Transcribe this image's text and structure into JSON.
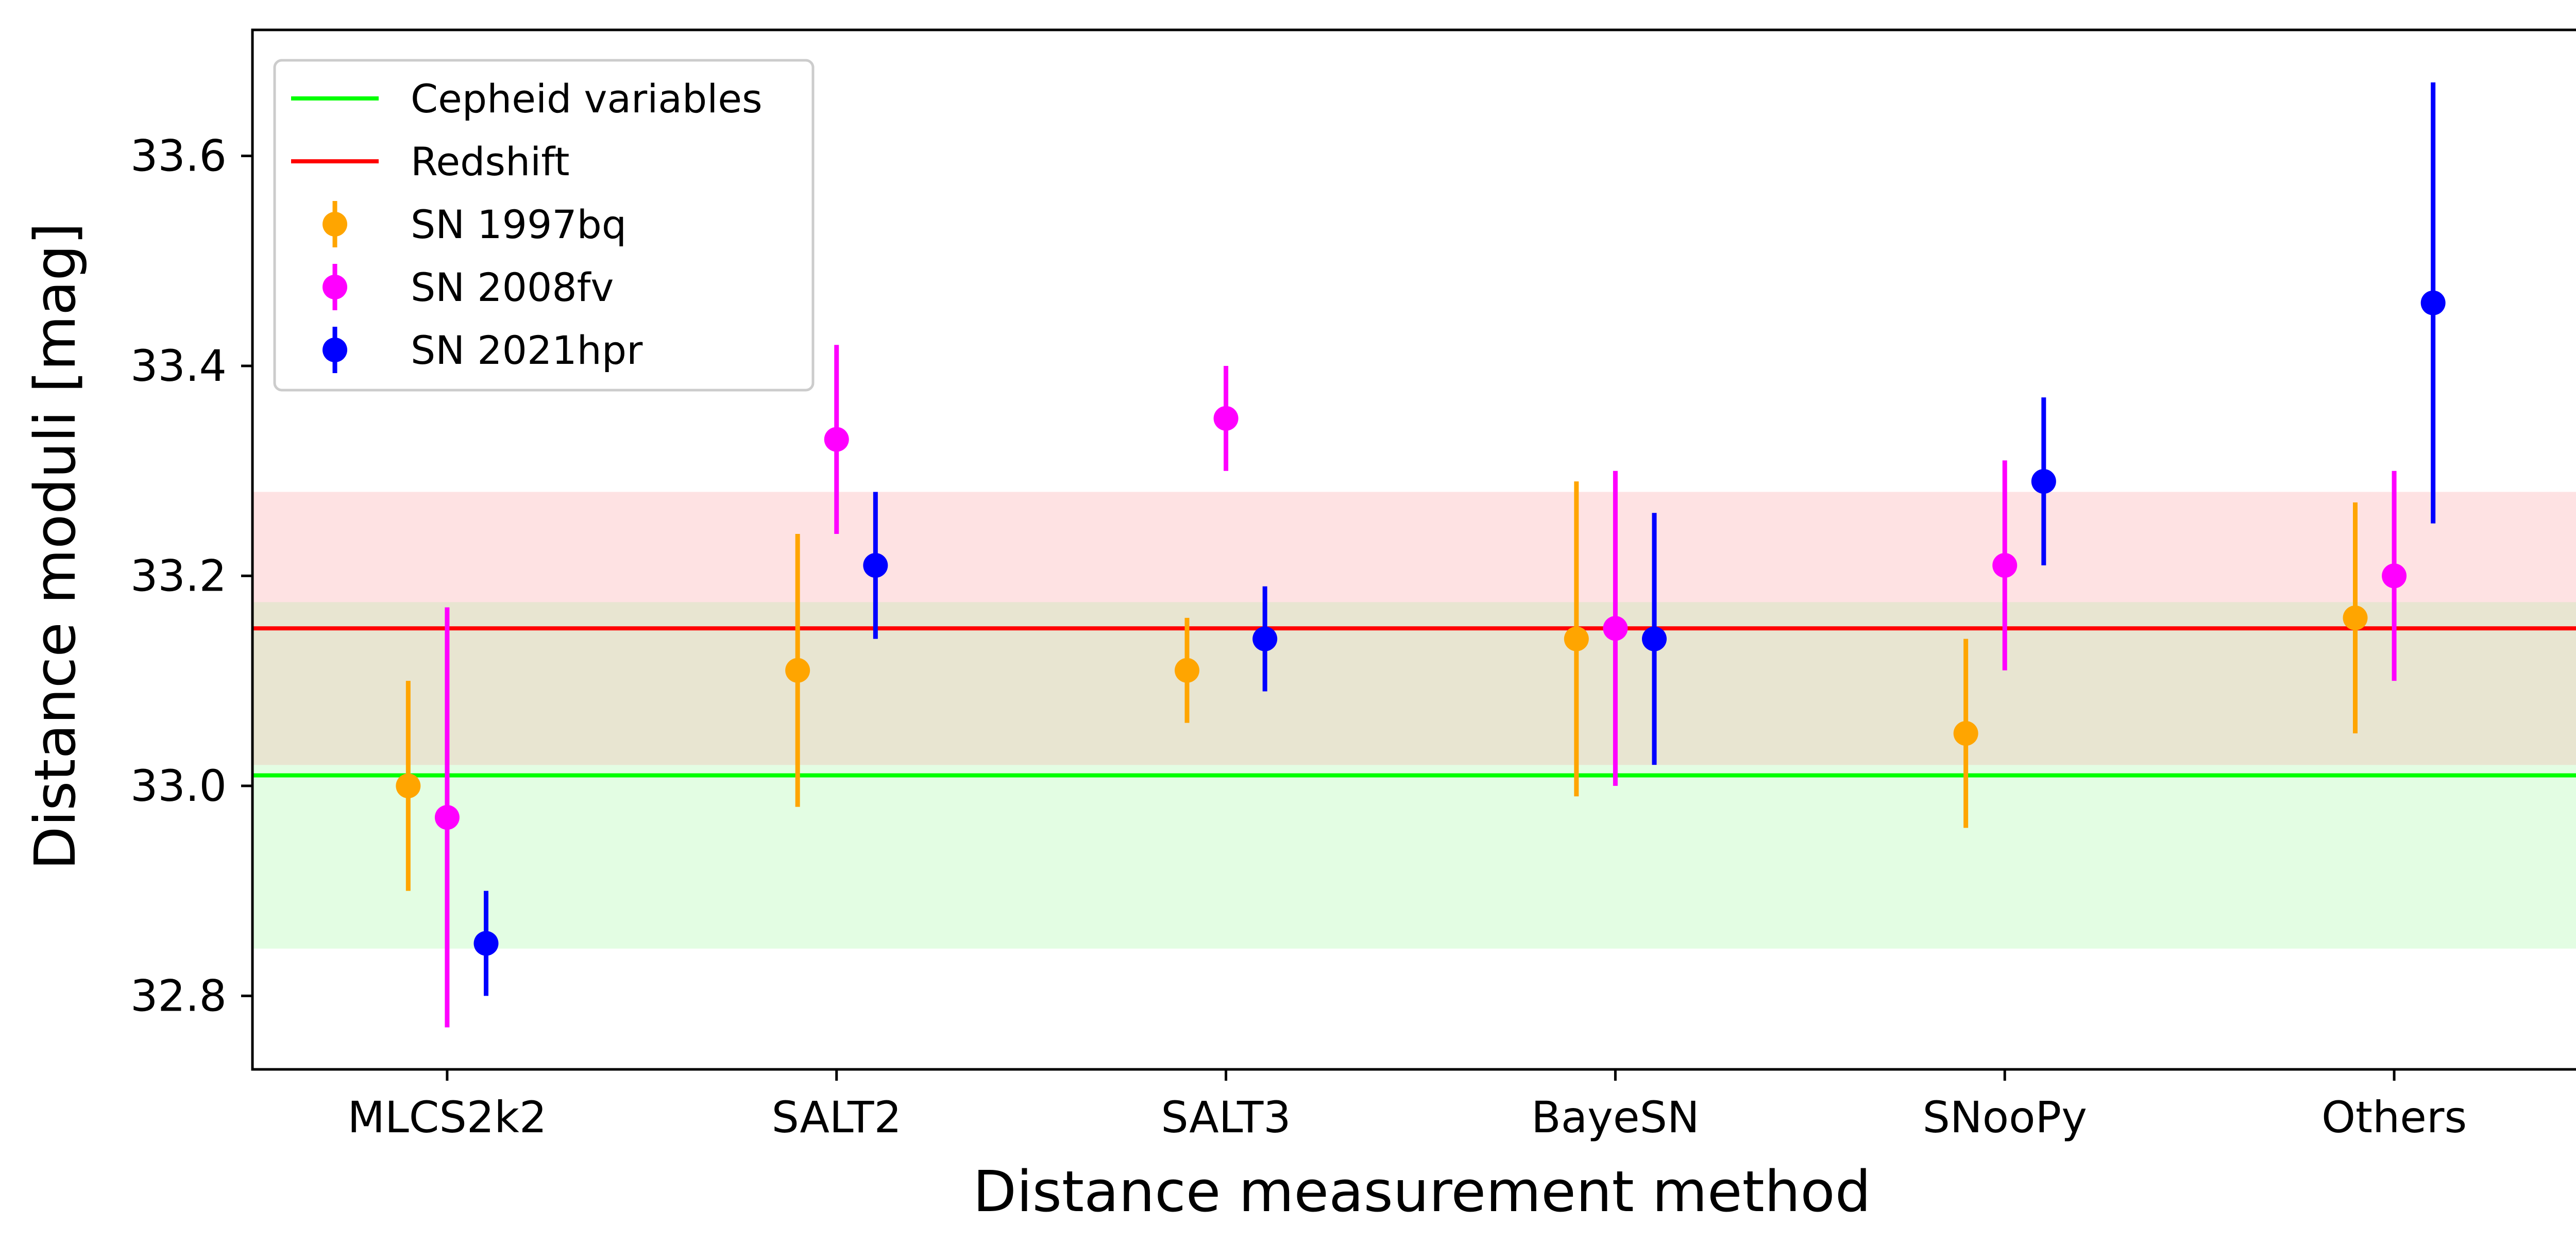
{
  "chart_data": {
    "type": "scatter",
    "xlabel": "Distance measurement method",
    "ylabel": "Distance moduli [mag]",
    "categories": [
      "MLCS2k2",
      "SALT2",
      "SALT3",
      "BayeSN",
      "SNooPy",
      "Others"
    ],
    "ylim": [
      32.73,
      33.72
    ],
    "yticks": [
      "32.8",
      "33.0",
      "33.2",
      "33.4",
      "33.6"
    ],
    "grid": false,
    "legend_position": "top-left",
    "reference_lines": [
      {
        "name": "Cepheid variables",
        "value": 33.01,
        "band": [
          32.845,
          33.175
        ],
        "color": "#00ff00",
        "band_color": "#e3fde3"
      },
      {
        "name": "Redshift",
        "value": 33.15,
        "band": [
          33.02,
          33.28
        ],
        "color": "#ff0000",
        "band_color": "#fee2e3"
      }
    ],
    "overlap_band_color": "#e8e5d1",
    "series": [
      {
        "name": "SN 1997bq",
        "color": "#ffa500",
        "offset": -0.1,
        "values": [
          33.0,
          33.11,
          33.11,
          33.14,
          33.05,
          33.16
        ],
        "lower": [
          32.9,
          32.98,
          33.06,
          32.99,
          32.96,
          33.05
        ],
        "upper": [
          33.1,
          33.24,
          33.16,
          33.29,
          33.14,
          33.27
        ]
      },
      {
        "name": "SN 2008fv",
        "color": "#ff00ff",
        "offset": 0.0,
        "values": [
          32.97,
          33.33,
          33.35,
          33.15,
          33.21,
          33.2
        ],
        "lower": [
          32.77,
          33.24,
          33.3,
          33.0,
          33.11,
          33.1
        ],
        "upper": [
          33.17,
          33.42,
          33.4,
          33.3,
          33.31,
          33.3
        ]
      },
      {
        "name": "SN 2021hpr",
        "color": "#0000ff",
        "offset": 0.1,
        "values": [
          32.85,
          33.21,
          33.14,
          33.14,
          33.29,
          33.46
        ],
        "lower": [
          32.8,
          33.14,
          33.09,
          33.02,
          33.21,
          33.25
        ],
        "upper": [
          32.9,
          33.28,
          33.19,
          33.26,
          33.37,
          33.67
        ]
      }
    ]
  }
}
